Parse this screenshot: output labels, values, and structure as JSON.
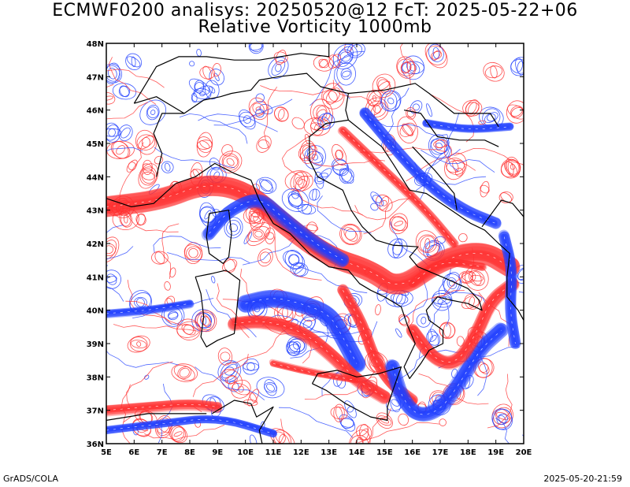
{
  "header": {
    "title_line1": "ECMWF0200 analisys: 20250520@12 FcT: 2025-05-22+06",
    "title_line2": "Relative Vorticity 1000mb"
  },
  "map": {
    "lon_range": [
      5,
      20
    ],
    "lat_range": [
      36,
      48
    ],
    "lon_labels": [
      "5E",
      "6E",
      "7E",
      "8E",
      "9E",
      "10E",
      "11E",
      "12E",
      "13E",
      "14E",
      "15E",
      "16E",
      "17E",
      "18E",
      "19E",
      "20E"
    ],
    "lat_labels": [
      "36N",
      "37N",
      "38N",
      "39N",
      "40N",
      "41N",
      "42N",
      "43N",
      "44N",
      "45N",
      "46N",
      "47N",
      "48N"
    ],
    "colors": {
      "positive": "#ff3030",
      "negative": "#2040ff",
      "coast": "#000000",
      "frame": "#000000",
      "background": "#ffffff"
    }
  },
  "footer": {
    "left": "GrADS/COLA",
    "right": "2025-05-20-21:59"
  }
}
